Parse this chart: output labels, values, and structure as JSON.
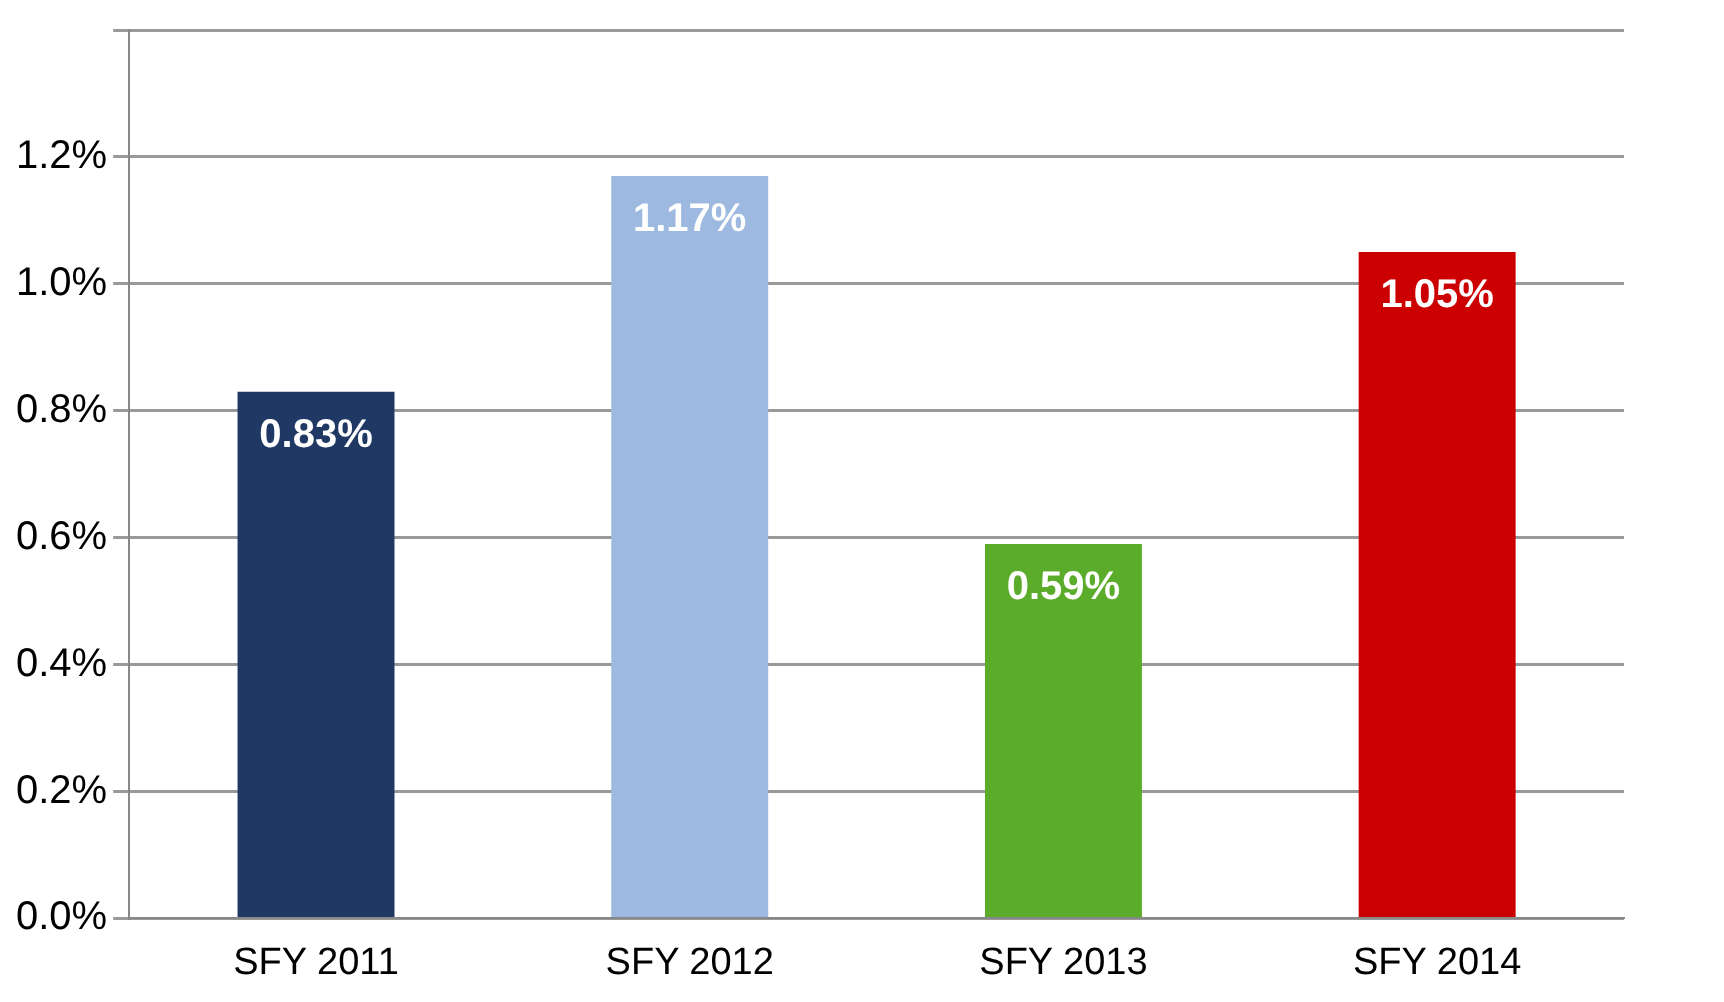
{
  "chart_data": {
    "type": "bar",
    "categories": [
      "SFY 2011",
      "SFY 2012",
      "SFY 2013",
      "SFY 2014"
    ],
    "values": [
      0.83,
      1.17,
      0.59,
      1.05
    ],
    "colors": [
      "#1f3864",
      "#9db9e0",
      "#5aac2a",
      "#cc0000"
    ],
    "value_labels": [
      "0.83%",
      "1.17%",
      "0.59%",
      "1.05%"
    ],
    "ylim": [
      0,
      1.4
    ],
    "yticks": [
      {
        "value": 0,
        "label": "0.0%"
      },
      {
        "value": 0.2,
        "label": "0.2%"
      },
      {
        "value": 0.4,
        "label": "0.4%"
      },
      {
        "value": 0.6,
        "label": "0.6%"
      },
      {
        "value": 0.8,
        "label": "0.8%"
      },
      {
        "value": 1.0,
        "label": "1.0%"
      },
      {
        "value": 1.2,
        "label": "1.2%"
      },
      {
        "value": 1.4,
        "label": null
      }
    ],
    "grid": "y"
  }
}
